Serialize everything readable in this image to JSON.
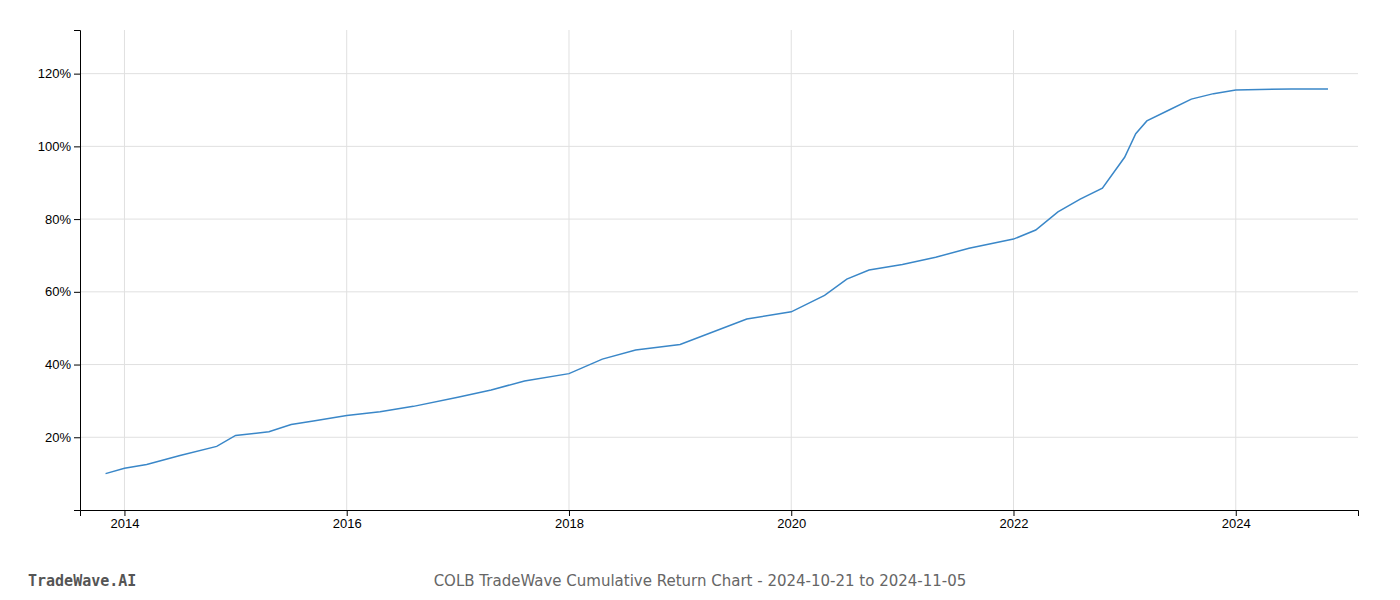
{
  "chart_data": {
    "type": "line",
    "title": "COLB TradeWave Cumulative Return Chart - 2024-10-21 to 2024-11-05",
    "annotations": [
      "TradeWave.AI"
    ],
    "color": "#3a87c8",
    "grid": true,
    "x": [
      2013.83,
      2014.0,
      2014.2,
      2014.5,
      2014.83,
      2015.0,
      2015.3,
      2015.5,
      2015.7,
      2016.0,
      2016.3,
      2016.6,
      2017.0,
      2017.3,
      2017.6,
      2018.0,
      2018.3,
      2018.6,
      2019.0,
      2019.3,
      2019.6,
      2020.0,
      2020.3,
      2020.5,
      2020.7,
      2021.0,
      2021.3,
      2021.6,
      2022.0,
      2022.2,
      2022.4,
      2022.6,
      2022.8,
      2023.0,
      2023.1,
      2023.2,
      2023.4,
      2023.6,
      2023.8,
      2024.0,
      2024.5,
      2024.83
    ],
    "values": [
      0.1,
      0.115,
      0.125,
      0.15,
      0.175,
      0.205,
      0.215,
      0.235,
      0.245,
      0.26,
      0.27,
      0.285,
      0.31,
      0.33,
      0.355,
      0.375,
      0.415,
      0.44,
      0.455,
      0.49,
      0.525,
      0.545,
      0.59,
      0.635,
      0.66,
      0.675,
      0.695,
      0.72,
      0.745,
      0.77,
      0.82,
      0.855,
      0.885,
      0.97,
      1.035,
      1.07,
      1.1,
      1.13,
      1.145,
      1.155,
      1.158,
      1.158
    ],
    "xlim": [
      2013.6,
      2025.1
    ],
    "ylim": [
      0.0,
      1.32
    ],
    "xticks": [
      2014,
      2016,
      2018,
      2020,
      2022,
      2024
    ],
    "yticks": [
      {
        "value": 0.2,
        "label": "20%"
      },
      {
        "value": 0.4,
        "label": "40%"
      },
      {
        "value": 0.6,
        "label": "60%"
      },
      {
        "value": 0.8,
        "label": "80%"
      },
      {
        "value": 1.0,
        "label": "100%"
      },
      {
        "value": 1.2,
        "label": "120%"
      }
    ]
  }
}
